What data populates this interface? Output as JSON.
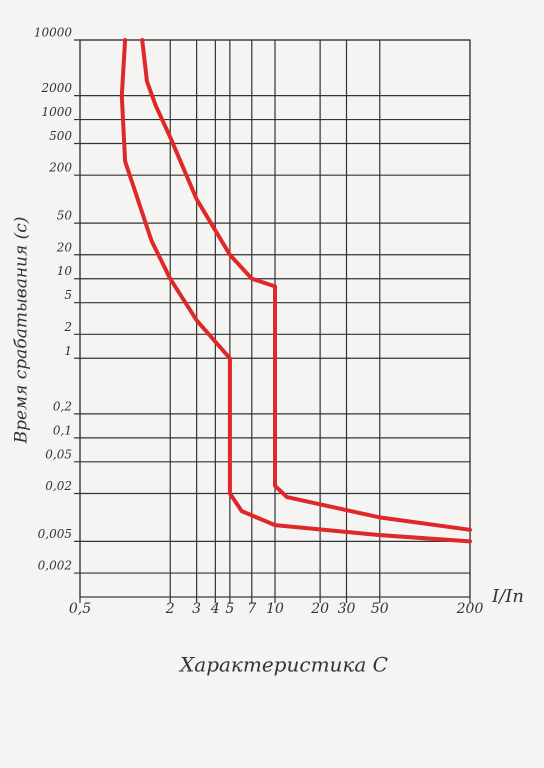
{
  "chart_data": {
    "type": "line",
    "title": "Характеристика C",
    "y_label": "Время срабатывания (с)",
    "x_label": "I/In",
    "xscale": "log",
    "yscale": "log",
    "xlim": [
      0.5,
      200
    ],
    "ylim": [
      0.001,
      10000
    ],
    "xticks": [
      {
        "value": 0.5,
        "label": "0,5"
      },
      2,
      3,
      4,
      5,
      7,
      10,
      20,
      30,
      50,
      200
    ],
    "yticks": [
      10000,
      2000,
      1000,
      500,
      200,
      50,
      20,
      10,
      5,
      2,
      1,
      {
        "value": 0.2,
        "label": "0,2"
      },
      {
        "value": 0.1,
        "label": "0,1"
      },
      {
        "value": 0.05,
        "label": "0,05"
      },
      {
        "value": 0.02,
        "label": "0,02"
      },
      {
        "value": 0.005,
        "label": "0,005"
      },
      {
        "value": 0.002,
        "label": "0,002"
      }
    ],
    "grid": true,
    "series": [
      {
        "color": "#e02828",
        "x": [
          1.3,
          1.4,
          1.6,
          2,
          3,
          5,
          7,
          10,
          10,
          12,
          50,
          200
        ],
        "values": [
          10000,
          3000,
          1500,
          600,
          100,
          20,
          10,
          8,
          0.025,
          0.018,
          0.01,
          0.007
        ]
      },
      {
        "color": "#e02828",
        "x": [
          1,
          0.95,
          1,
          1.5,
          2,
          3,
          5,
          5,
          6,
          10,
          50,
          200
        ],
        "values": [
          10000,
          2000,
          300,
          30,
          10,
          3,
          1,
          0.02,
          0.012,
          0.008,
          0.006,
          0.005
        ]
      }
    ]
  }
}
